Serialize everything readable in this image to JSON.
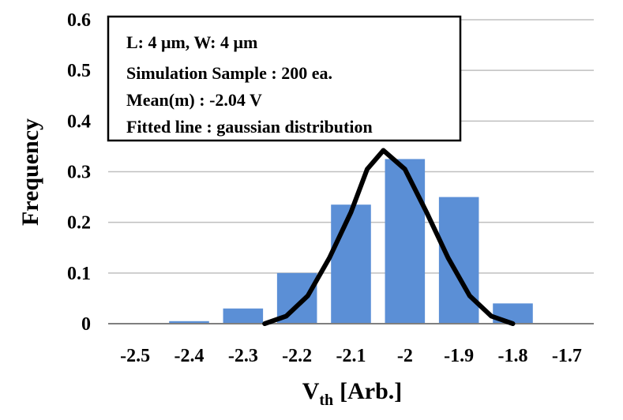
{
  "chart_data": {
    "type": "bar",
    "categories": [
      "-2.5",
      "-2.4",
      "-2.3",
      "-2.2",
      "-2.1",
      "-2",
      "-1.9",
      "-1.8",
      "-1.7"
    ],
    "values": [
      0,
      0.005,
      0.03,
      0.1,
      0.235,
      0.325,
      0.25,
      0.04,
      0
    ],
    "fitted_line": {
      "x": [
        -2.26,
        -2.22,
        -2.18,
        -2.14,
        -2.1,
        -2.07,
        -2.04,
        -2.0,
        -1.96,
        -1.92,
        -1.88,
        -1.84,
        -1.8
      ],
      "y": [
        0,
        0.015,
        0.055,
        0.13,
        0.22,
        0.305,
        0.342,
        0.305,
        0.22,
        0.13,
        0.055,
        0.015,
        0
      ]
    },
    "xlabel_main": "V",
    "xlabel_sub": "th",
    "xlabel_unit": "[Arb.]",
    "ylabel": "Frequency",
    "ylim": [
      0,
      0.6
    ],
    "yticks": [
      "0",
      "0.1",
      "0.2",
      "0.3",
      "0.4",
      "0.5",
      "0.6"
    ],
    "grid": true,
    "annotations": [
      "L: 4 μm, W: 4 μm",
      "Simulation Sample : 200 ea.",
      "Mean(m) : -2.04 V",
      "Fitted line : gaussian distribution"
    ],
    "colors": {
      "bar": "#5B8FD6",
      "line": "#000000",
      "grid": "#BFBFBF"
    }
  }
}
